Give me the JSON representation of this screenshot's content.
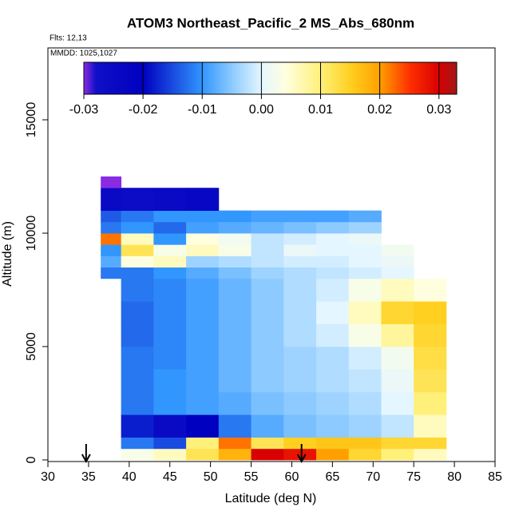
{
  "chart_data": {
    "type": "heatmap",
    "title": "ATOM3 Northeast_Pacific_2 MS_Abs_680nm",
    "subtitle": "Flts: 12,13",
    "annotation": "MMDD: 1025,1027",
    "xlabel": "Latitude (deg N)",
    "ylabel": "Altitude (m)",
    "xlim": [
      30,
      85
    ],
    "xticks": [
      30,
      35,
      40,
      45,
      50,
      55,
      60,
      65,
      70,
      75,
      80,
      85
    ],
    "ylim": [
      -70,
      18170
    ],
    "yticks": [
      0,
      5000,
      10000,
      15000
    ],
    "x_bins": [
      36.5,
      39,
      43,
      47,
      51,
      55,
      59,
      63,
      67,
      71,
      75,
      79
    ],
    "y_bins": [
      0,
      500,
      1000,
      2000,
      3000,
      4000,
      5000,
      6000,
      7000,
      8000,
      8500,
      9000,
      9500,
      10000,
      10500,
      11000,
      12000,
      12500
    ],
    "z": [
      [
        null,
        0.003,
        0.006,
        0.012,
        0.018,
        0.03,
        0.028,
        0.02,
        0.014,
        0.01,
        0.006
      ],
      [
        null,
        -0.012,
        -0.015,
        0.01,
        0.022,
        0.012,
        0.015,
        0.016,
        0.016,
        0.014,
        0.014
      ],
      [
        null,
        -0.018,
        -0.025,
        -0.02,
        -0.012,
        -0.008,
        -0.006,
        -0.005,
        -0.004,
        -0.002,
        0.006
      ],
      [
        null,
        -0.012,
        -0.01,
        -0.009,
        -0.008,
        -0.006,
        -0.005,
        -0.004,
        -0.003,
        0,
        0.01
      ],
      [
        null,
        -0.012,
        -0.01,
        -0.009,
        -0.007,
        -0.005,
        -0.004,
        -0.003,
        -0.002,
        0.001,
        0.012
      ],
      [
        null,
        -0.012,
        -0.011,
        -0.009,
        -0.007,
        -0.005,
        -0.004,
        -0.003,
        -0.001,
        0.002,
        0.013
      ],
      [
        null,
        -0.013,
        -0.011,
        -0.009,
        -0.007,
        -0.005,
        -0.003,
        -0.001,
        0.003,
        0.008,
        0.014
      ],
      [
        null,
        -0.013,
        -0.011,
        -0.009,
        -0.007,
        -0.005,
        -0.003,
        0,
        0.006,
        0.014,
        0.015
      ],
      [
        null,
        -0.012,
        -0.011,
        -0.009,
        -0.007,
        -0.005,
        -0.003,
        -0.001,
        0.003,
        0.006,
        0.004
      ],
      [
        -0.012,
        -0.012,
        -0.01,
        -0.008,
        -0.006,
        -0.004,
        -0.003,
        -0.002,
        -0.001,
        0,
        null
      ],
      [
        -0.008,
        0.004,
        0.006,
        -0.004,
        -0.003,
        -0.002,
        -0.001,
        -0.001,
        0,
        0.001,
        null
      ],
      [
        -0.01,
        0.012,
        0.003,
        0.006,
        0.003,
        -0.002,
        0.001,
        0,
        0,
        0.002,
        null
      ],
      [
        0.022,
        0.006,
        -0.01,
        0.004,
        0.002,
        -0.002,
        -0.001,
        0,
        0.001,
        null,
        null
      ],
      [
        -0.012,
        -0.01,
        -0.013,
        -0.009,
        -0.008,
        -0.007,
        -0.006,
        -0.005,
        -0.004,
        null,
        null
      ],
      [
        -0.014,
        -0.012,
        -0.01,
        -0.01,
        -0.01,
        -0.009,
        -0.009,
        -0.009,
        -0.008,
        null,
        null
      ],
      [
        -0.025,
        -0.026,
        -0.025,
        -0.024,
        null,
        null,
        null,
        null,
        null,
        null,
        null
      ],
      [
        -0.03,
        null,
        null,
        null,
        null,
        null,
        null,
        null,
        null,
        null,
        null
      ]
    ],
    "clim": [
      -0.03,
      0.033
    ],
    "cticks": [
      -0.03,
      {
        "value": -0.02,
        "label": "-0.02"
      },
      {
        "value": -0.01,
        "label": "-0.01"
      },
      {
        "value": 0,
        "label": "0.00"
      },
      {
        "value": 0.01,
        "label": "0.01"
      },
      {
        "value": 0.02,
        "label": "0.02"
      },
      {
        "value": 0.03,
        "label": "0.03"
      }
    ],
    "colorscale": [
      [
        -0.03,
        "#8a2be2"
      ],
      [
        -0.028,
        "#1010c8"
      ],
      [
        -0.02,
        "#0000c0"
      ],
      [
        -0.01,
        "#3296ff"
      ],
      [
        -0.005,
        "#8ccaff"
      ],
      [
        0,
        "#e4f6ff"
      ],
      [
        0.004,
        "#ffffe0"
      ],
      [
        0.01,
        "#fff07a"
      ],
      [
        0.015,
        "#ffd020"
      ],
      [
        0.02,
        "#ffa000"
      ],
      [
        0.025,
        "#ff3000"
      ],
      [
        0.03,
        "#d80000"
      ],
      [
        0.033,
        "#a01818"
      ]
    ],
    "arrows": [
      34.7,
      61.2
    ]
  }
}
